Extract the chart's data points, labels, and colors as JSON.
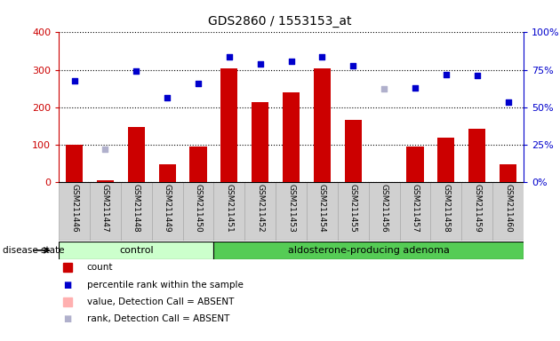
{
  "title": "GDS2860 / 1553153_at",
  "samples": [
    "GSM211446",
    "GSM211447",
    "GSM211448",
    "GSM211449",
    "GSM211450",
    "GSM211451",
    "GSM211452",
    "GSM211453",
    "GSM211454",
    "GSM211455",
    "GSM211456",
    "GSM211457",
    "GSM211458",
    "GSM211459",
    "GSM211460"
  ],
  "count_values": [
    100,
    5,
    148,
    48,
    95,
    303,
    213,
    240,
    303,
    167,
    0,
    95,
    120,
    143,
    48
  ],
  "count_absent": [
    false,
    false,
    false,
    false,
    false,
    false,
    false,
    false,
    false,
    false,
    true,
    false,
    false,
    false,
    false
  ],
  "rank_values": [
    270,
    88,
    298,
    226,
    265,
    335,
    315,
    322,
    335,
    311,
    250,
    252,
    287,
    286,
    214
  ],
  "rank_absent": [
    false,
    true,
    false,
    false,
    false,
    false,
    false,
    false,
    false,
    false,
    true,
    false,
    false,
    false,
    false
  ],
  "control_count": 5,
  "adenoma_count": 10,
  "ylim_left": [
    0,
    400
  ],
  "ylim_right": [
    0,
    100
  ],
  "yticks_left": [
    0,
    100,
    200,
    300,
    400
  ],
  "yticks_right": [
    0,
    25,
    50,
    75,
    100
  ],
  "ytick_labels_right": [
    "0%",
    "25%",
    "50%",
    "75%",
    "100%"
  ],
  "bar_color_normal": "#cc0000",
  "bar_color_absent": "#ffb0b0",
  "rank_color_normal": "#0000cc",
  "rank_color_absent": "#b0b0cc",
  "left_axis_color": "#cc0000",
  "right_axis_color": "#0000cc",
  "grid_color": "#000000",
  "plot_bg": "#ffffff",
  "control_bg": "#ccffcc",
  "adenoma_bg": "#55cc55",
  "xlabel_area_bg": "#d0d0d0",
  "legend_items": [
    {
      "label": "count",
      "color": "#cc0000",
      "type": "bar"
    },
    {
      "label": "percentile rank within the sample",
      "color": "#0000cc",
      "type": "scatter"
    },
    {
      "label": "value, Detection Call = ABSENT",
      "color": "#ffb0b0",
      "type": "bar"
    },
    {
      "label": "rank, Detection Call = ABSENT",
      "color": "#b0b0cc",
      "type": "scatter"
    }
  ]
}
